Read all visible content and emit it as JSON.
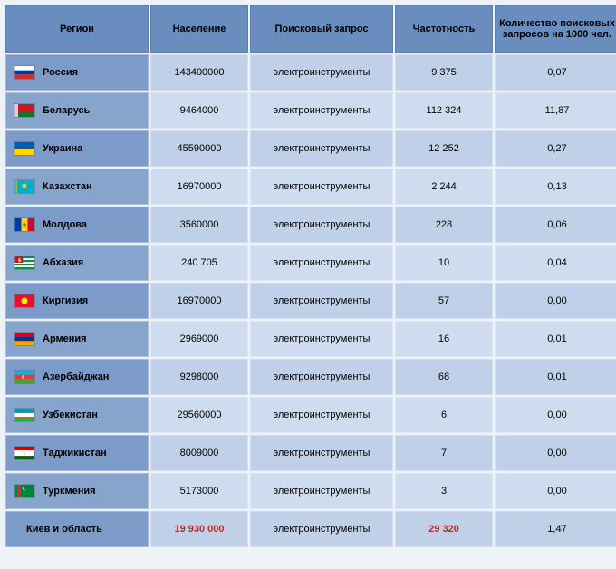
{
  "headers": {
    "region": "Регион",
    "population": "Население",
    "query": "Поисковый запрос",
    "frequency": "Частотность",
    "per1000": "Количество поисковых запросов на 1000 чел."
  },
  "query_text": "электроинструменты",
  "colors": {
    "header_bg": "#6a8dc0",
    "row_region_even": "#7c9bc8",
    "row_region_odd": "#87a4cd",
    "cell_even": "#bfd0e8",
    "cell_odd": "#cfdcef",
    "highlight_text": "#b03030"
  },
  "rows": [
    {
      "region": "Россия",
      "flag": "ru",
      "population": "143400000",
      "frequency": "9 375",
      "per1000": "0,07"
    },
    {
      "region": "Беларусь",
      "flag": "by",
      "population": "9464000",
      "frequency": "112 324",
      "per1000": "11,87"
    },
    {
      "region": "Украина",
      "flag": "ua",
      "population": "45590000",
      "frequency": "12 252",
      "per1000": "0,27"
    },
    {
      "region": "Казахстан",
      "flag": "kz",
      "population": "16970000",
      "frequency": "2 244",
      "per1000": "0,13"
    },
    {
      "region": "Молдова",
      "flag": "md",
      "population": "3560000",
      "frequency": "228",
      "per1000": "0,06"
    },
    {
      "region": "Абхазия",
      "flag": "ab",
      "population": "240 705",
      "frequency": "10",
      "per1000": "0,04"
    },
    {
      "region": "Киргизия",
      "flag": "kg",
      "population": "16970000",
      "frequency": "57",
      "per1000": "0,00"
    },
    {
      "region": "Армения",
      "flag": "am",
      "population": "2969000",
      "frequency": "16",
      "per1000": "0,01"
    },
    {
      "region": "Азербайджан",
      "flag": "az",
      "population": "9298000",
      "frequency": "68",
      "per1000": "0,01"
    },
    {
      "region": "Узбекистан",
      "flag": "uz",
      "population": "29560000",
      "frequency": "6",
      "per1000": "0,00"
    },
    {
      "region": "Таджикистан",
      "flag": "tj",
      "population": "8009000",
      "frequency": "7",
      "per1000": "0,00"
    },
    {
      "region": "Туркмения",
      "flag": "tm",
      "population": "5173000",
      "frequency": "3",
      "per1000": "0,00"
    }
  ],
  "summary": {
    "region": "Киев и область",
    "population": "19 930 000",
    "frequency": "29 320",
    "per1000": "1,47"
  },
  "flags_svg": {
    "ru": "<svg viewBox='0 0 24 16'><rect width='24' height='16' fill='#fff'/><rect y='5.33' width='24' height='5.33' fill='#0039a6'/><rect y='10.66' width='24' height='5.34' fill='#d52b1e'/></svg>",
    "by": "<svg viewBox='0 0 24 16'><rect width='24' height='16' fill='#ce1720'/><rect y='10.66' width='24' height='5.34' fill='#007c30'/><rect width='4' height='16' fill='#fff'/><rect x='0' width='4' height='16' fill='#ce1720' opacity='0.25'/></svg>",
    "ua": "<svg viewBox='0 0 24 16'><rect width='24' height='8' fill='#005bbb'/><rect y='8' width='24' height='8' fill='#ffd500'/></svg>",
    "kz": "<svg viewBox='0 0 24 16'><rect width='24' height='16' fill='#00afca'/><circle cx='12' cy='7' r='3' fill='#fec50c'/><rect x='1' width='2' height='16' fill='#fec50c' opacity='0.6'/></svg>",
    "md": "<svg viewBox='0 0 24 16'><rect width='8' height='16' fill='#003da5'/><rect x='8' width='8' height='16' fill='#fcd116'/><rect x='16' width='8' height='16' fill='#cc092f'/><circle cx='12' cy='8' r='2' fill='#8b6f3e'/></svg>",
    "ab": "<svg viewBox='0 0 24 16'><rect width='24' height='16' fill='#fff'/><rect y='0' width='24' height='2.28' fill='#00993e'/><rect y='4.56' width='24' height='2.28' fill='#00993e'/><rect y='9.12' width='24' height='2.28' fill='#00993e'/><rect y='13.68' width='24' height='2.32' fill='#00993e'/><rect width='10' height='8' fill='#c8102e'/><text x='3' y='6' fill='#fff' font-size='5'>✋</text></svg>",
    "kg": "<svg viewBox='0 0 24 16'><rect width='24' height='16' fill='#e8112d'/><circle cx='12' cy='8' r='4' fill='#ffef00'/></svg>",
    "am": "<svg viewBox='0 0 24 16'><rect width='24' height='5.33' fill='#d90012'/><rect y='5.33' width='24' height='5.33' fill='#0033a0'/><rect y='10.66' width='24' height='5.34' fill='#f2a800'/></svg>",
    "az": "<svg viewBox='0 0 24 16'><rect width='24' height='5.33' fill='#00b5e2'/><rect y='5.33' width='24' height='5.33' fill='#ef3340'/><rect y='10.66' width='24' height='5.34' fill='#509e2f'/><circle cx='11' cy='8' r='2' fill='#fff'/><circle cx='11.8' cy='8' r='1.6' fill='#ef3340'/></svg>",
    "uz": "<svg viewBox='0 0 24 16'><rect width='24' height='16' fill='#fff'/><rect width='24' height='5' fill='#0099b5'/><rect y='11' width='24' height='5' fill='#1eb53a'/><rect y='5' width='24' height='0.6' fill='#ce1126'/><rect y='10.4' width='24' height='0.6' fill='#ce1126'/></svg>",
    "tj": "<svg viewBox='0 0 24 16'><rect width='24' height='16' fill='#fff'/><rect width='24' height='4.5' fill='#cc0000'/><rect y='11.5' width='24' height='4.5' fill='#006600'/><text x='10' y='10' fill='#f8c300' font-size='4'>♔</text></svg>",
    "tm": "<svg viewBox='0 0 24 16'><rect width='24' height='16' fill='#00843d'/><rect x='3' width='4' height='16' fill='#ca3435'/><circle cx='12' cy='5' r='2' fill='#fff'/><circle cx='12.8' cy='4.5' r='1.8' fill='#00843d'/></svg>"
  }
}
